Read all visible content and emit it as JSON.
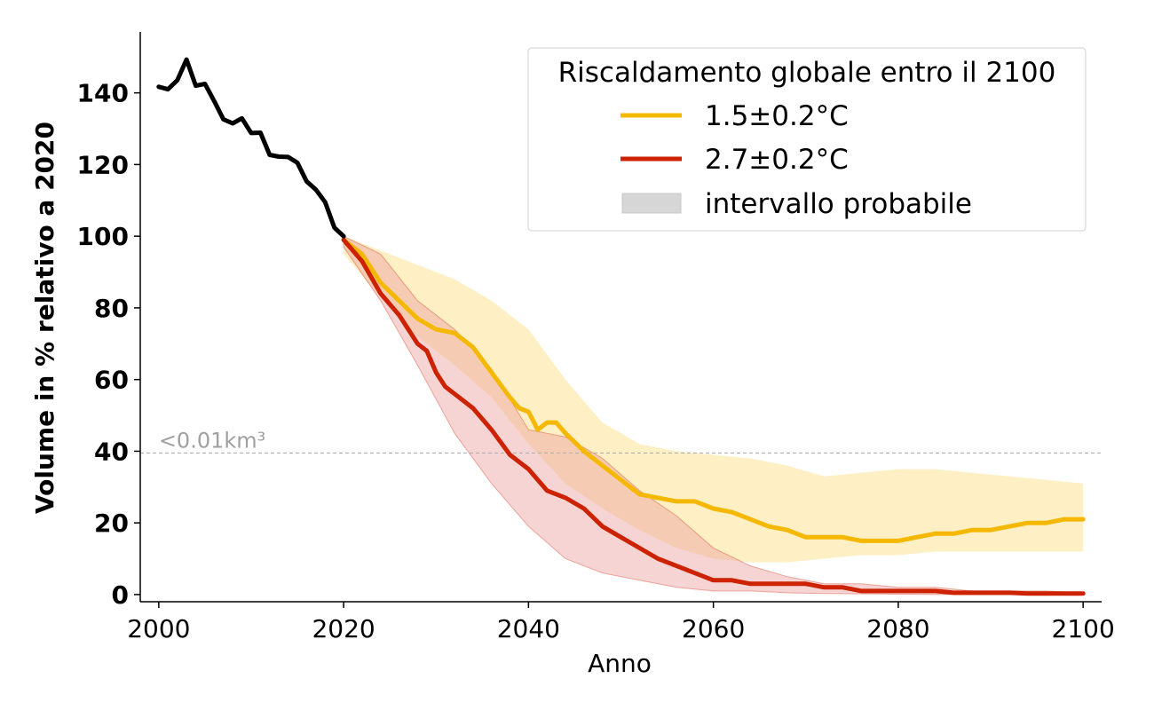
{
  "chart_data": {
    "type": "line",
    "xlabel": "Anno",
    "ylabel": "Volume in % relativo a 2020",
    "xlim": [
      1998,
      2102
    ],
    "ylim": [
      -2,
      157
    ],
    "xticks": [
      2000,
      2020,
      2040,
      2060,
      2080,
      2100
    ],
    "yticks": [
      0,
      20,
      40,
      60,
      80,
      100,
      120,
      140
    ],
    "grid": false,
    "legend": {
      "title": "Riscaldamento globale entro il 2100",
      "placement": "top-right",
      "entries": [
        "1.5±0.2°C",
        "2.7±0.2°C",
        "intervallo probabile"
      ]
    },
    "threshold": {
      "y": 39.5,
      "label": "<0.01km³"
    },
    "colors": {
      "observed": "#000000",
      "low": "#f5b800",
      "high": "#cc2200",
      "low_band": "#fde9b0",
      "high_band": "#eea0a0",
      "legend_band": "#d6d6d6",
      "threshold": "#b0b0b0"
    },
    "observed": {
      "x": [
        2000,
        2001,
        2002,
        2003,
        2004,
        2005,
        2006,
        2007,
        2008,
        2009,
        2010,
        2011,
        2012,
        2013,
        2014,
        2015,
        2016,
        2017,
        2018,
        2019,
        2020
      ],
      "y": [
        141.7,
        141,
        143.5,
        149.3,
        142,
        142.5,
        137.7,
        132.6,
        131.5,
        132.9,
        128.8,
        128.9,
        122.7,
        122.2,
        122.1,
        120.5,
        115.3,
        113,
        109.5,
        102.4,
        100
      ]
    },
    "series": [
      {
        "name": "1.5±0.2°C",
        "x": [
          2020,
          2022,
          2024,
          2026,
          2028,
          2030,
          2032,
          2034,
          2036,
          2038,
          2039,
          2040,
          2041,
          2042,
          2043,
          2044,
          2046,
          2048,
          2050,
          2052,
          2054,
          2056,
          2058,
          2060,
          2062,
          2064,
          2066,
          2068,
          2070,
          2072,
          2074,
          2076,
          2078,
          2080,
          2082,
          2084,
          2086,
          2088,
          2090,
          2092,
          2094,
          2096,
          2098,
          2100
        ],
        "y": [
          99,
          95,
          87,
          82,
          77,
          74,
          73,
          69,
          62,
          55,
          52,
          51,
          46,
          48,
          48,
          45,
          40,
          36,
          32,
          28,
          27,
          26,
          26,
          24,
          23,
          21,
          19,
          18,
          16,
          16,
          16,
          15,
          15,
          15,
          16,
          17,
          17,
          18,
          18,
          19,
          20,
          20,
          21,
          21
        ],
        "band_x": [
          2020,
          2024,
          2028,
          2032,
          2036,
          2040,
          2044,
          2048,
          2052,
          2056,
          2060,
          2064,
          2068,
          2072,
          2076,
          2080,
          2084,
          2088,
          2092,
          2096,
          2100
        ],
        "band_lower": [
          95,
          83,
          72,
          64,
          55,
          42,
          31,
          24,
          18,
          13,
          10,
          9,
          9,
          10,
          11,
          11,
          12,
          12,
          12,
          12,
          12
        ],
        "band_upper": [
          100,
          96,
          92,
          88,
          82,
          74,
          60,
          48,
          42,
          40,
          39,
          38,
          36,
          33,
          34,
          35,
          35,
          34,
          33,
          32,
          31
        ]
      },
      {
        "name": "2.7±0.2°C",
        "x": [
          2020,
          2022,
          2024,
          2026,
          2028,
          2029,
          2030,
          2031,
          2032,
          2034,
          2036,
          2038,
          2040,
          2042,
          2044,
          2046,
          2048,
          2050,
          2052,
          2054,
          2056,
          2058,
          2060,
          2062,
          2064,
          2066,
          2068,
          2070,
          2072,
          2074,
          2076,
          2078,
          2080,
          2082,
          2084,
          2086,
          2088,
          2090,
          2092,
          2094,
          2096,
          2098,
          2100
        ],
        "y": [
          99,
          93,
          84,
          78,
          70,
          68,
          62,
          58,
          56,
          52,
          46,
          39,
          35,
          29,
          27,
          24,
          19,
          16,
          13,
          10,
          8,
          6,
          4,
          4,
          3,
          3,
          3,
          3,
          2,
          2,
          1,
          1,
          1,
          1,
          1,
          0.5,
          0.5,
          0.5,
          0.5,
          0.3,
          0.3,
          0.3,
          0.3
        ],
        "band_x": [
          2020,
          2024,
          2028,
          2032,
          2036,
          2040,
          2044,
          2048,
          2052,
          2056,
          2060,
          2064,
          2068,
          2072,
          2076,
          2080,
          2084,
          2088,
          2092,
          2096,
          2100
        ],
        "band_lower": [
          97,
          82,
          64,
          45,
          31,
          19,
          10,
          6,
          4,
          2,
          1,
          1,
          0.5,
          0.3,
          0.2,
          0.1,
          0,
          0,
          0,
          0,
          0
        ],
        "band_upper": [
          100,
          95,
          82,
          74,
          63,
          46,
          44,
          38,
          29,
          22,
          13,
          8,
          5,
          3,
          3,
          2,
          2,
          1,
          1,
          1,
          0.5
        ]
      }
    ]
  }
}
